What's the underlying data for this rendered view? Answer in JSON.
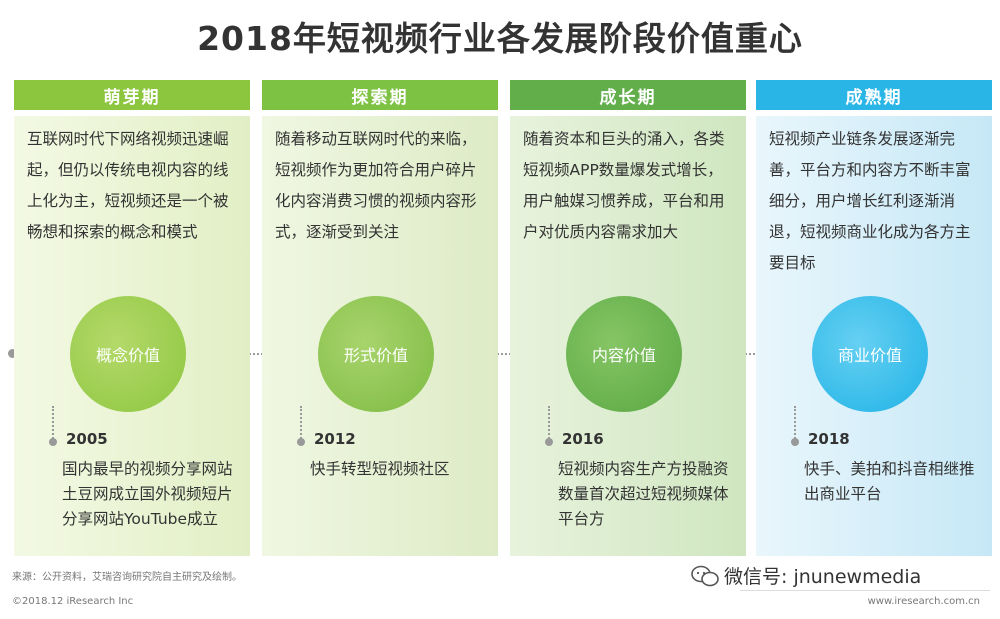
{
  "title": "2018年短视频行业各发展阶段价值重心",
  "stages": [
    {
      "header": "萌芽期",
      "description": "互联网时代下网络视频迅速崛起，但仍以传统电视内容的线上化为主，短视频还是一个被畅想和探索的概念和模式",
      "value": "概念价值",
      "year": "2005",
      "event": "国内最早的视频分享网站土豆网成立国外视频短片分享网站YouTube成立"
    },
    {
      "header": "探索期",
      "description": "随着移动互联网时代的来临，短视频作为更加符合用户碎片化内容消费习惯的视频内容形式，逐渐受到关注",
      "value": "形式价值",
      "year": "2012",
      "event": "快手转型短视频社区"
    },
    {
      "header": "成长期",
      "description": "随着资本和巨头的涌入，各类短视频APP数量爆发式增长，用户触媒习惯养成，平台和用户对优质内容需求加大",
      "value": "内容价值",
      "year": "2016",
      "event": "短视频内容生产方投融资数量首次超过短视频媒体平台方"
    },
    {
      "header": "成熟期",
      "description": "短视频产业链条发展逐渐完善，平台方和内容方不断丰富细分，用户增长红利逐渐消退，短视频商业化成为各方主要目标",
      "value": "商业价值",
      "year": "2018",
      "event": "快手、美拍和抖音相继推出商业平台"
    }
  ],
  "footer": {
    "source": "来源：公开资料，艾瑞咨询研究院自主研究及绘制。",
    "copyright": "©2018.12 iResearch Inc",
    "website": "www.iresearch.com.cn",
    "watermark": "微信号: jnunewmedia"
  },
  "colors": {
    "stage1": "#8cc63f",
    "stage2": "#7dc243",
    "stage3": "#61ae4b",
    "stage4": "#29b6e7"
  }
}
